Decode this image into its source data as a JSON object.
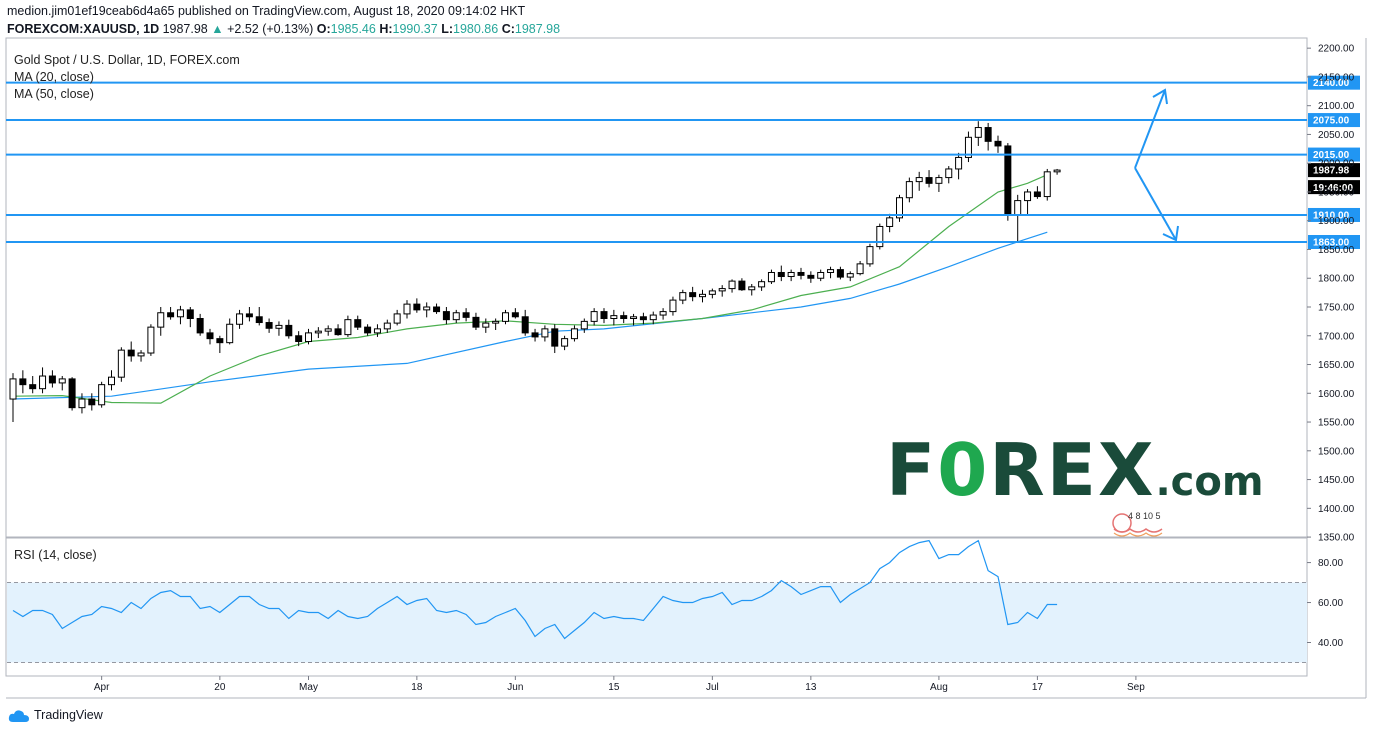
{
  "header": {
    "line1": "medion.jim01ef19ceab6d4a65 published on TradingView.com, August 18, 2020 09:14:02 HKT",
    "symbol": "FOREXCOM:XAUUSD, 1D",
    "last": "1987.98",
    "change_arrow": "▲",
    "change": "+2.52 (+0.13%)",
    "o_label": "O:",
    "o": "1985.46",
    "h_label": "H:",
    "h": "1990.37",
    "l_label": "L:",
    "l": "1980.86",
    "c_label": "C:",
    "c": "1987.98"
  },
  "legend": {
    "title": "Gold Spot / U.S. Dollar, 1D, FOREX.com",
    "ma20": "MA (20, close)",
    "ma50": "MA (50, close)",
    "rsi": "RSI (14, close)"
  },
  "logo": {
    "main": "F0REX",
    "suffix": ".com"
  },
  "stamp_text": "4 8 10 5",
  "footer": {
    "brand": "TradingView"
  },
  "colors": {
    "level_line": "#2196f3",
    "ma20": "#4caf50",
    "ma50": "#2196f3",
    "rsi": "#2196f3",
    "rsi_band": "#e3f2fd",
    "logo": "#1a4b3a",
    "logo_accent": "#1fa84f"
  },
  "chart_data": {
    "type": "candlestick",
    "price_axis": {
      "ticks": [
        1350,
        1400,
        1450,
        1500,
        1550,
        1600,
        1650,
        1700,
        1750,
        1800,
        1850,
        1900,
        1950,
        2000,
        2050,
        2100,
        2150,
        2200
      ],
      "range": [
        1350,
        2200
      ]
    },
    "x_ticks": [
      {
        "i": 9,
        "label": "Apr"
      },
      {
        "i": 21,
        "label": "20"
      },
      {
        "i": 30,
        "label": "May"
      },
      {
        "i": 41,
        "label": "18"
      },
      {
        "i": 51,
        "label": "Jun"
      },
      {
        "i": 61,
        "label": "15"
      },
      {
        "i": 71,
        "label": "Jul"
      },
      {
        "i": 81,
        "label": "13"
      },
      {
        "i": 94,
        "label": "Aug"
      },
      {
        "i": 104,
        "label": "17"
      },
      {
        "i": 114,
        "label": "Sep"
      }
    ],
    "levels": [
      2140,
      2075,
      2015,
      1910,
      1863
    ],
    "level_labels": [
      "2140.00",
      "2075.00",
      "2015.00",
      "1910.00",
      "1863.00"
    ],
    "last_price_label": "1987.98",
    "countdown_label": "19:46:00",
    "candles": [
      [
        1590,
        1635,
        1550,
        1625
      ],
      [
        1625,
        1640,
        1600,
        1615
      ],
      [
        1615,
        1630,
        1600,
        1608
      ],
      [
        1608,
        1645,
        1600,
        1630
      ],
      [
        1630,
        1640,
        1610,
        1618
      ],
      [
        1618,
        1630,
        1605,
        1625
      ],
      [
        1625,
        1628,
        1570,
        1575
      ],
      [
        1575,
        1600,
        1565,
        1590
      ],
      [
        1590,
        1600,
        1570,
        1580
      ],
      [
        1580,
        1620,
        1575,
        1615
      ],
      [
        1615,
        1640,
        1605,
        1628
      ],
      [
        1628,
        1680,
        1620,
        1675
      ],
      [
        1675,
        1690,
        1655,
        1665
      ],
      [
        1665,
        1675,
        1655,
        1670
      ],
      [
        1670,
        1720,
        1665,
        1715
      ],
      [
        1715,
        1750,
        1700,
        1740
      ],
      [
        1740,
        1750,
        1728,
        1733
      ],
      [
        1733,
        1752,
        1720,
        1745
      ],
      [
        1745,
        1750,
        1715,
        1730
      ],
      [
        1730,
        1738,
        1700,
        1705
      ],
      [
        1705,
        1712,
        1685,
        1695
      ],
      [
        1695,
        1700,
        1670,
        1688
      ],
      [
        1688,
        1730,
        1685,
        1720
      ],
      [
        1720,
        1745,
        1712,
        1738
      ],
      [
        1738,
        1750,
        1725,
        1733
      ],
      [
        1733,
        1750,
        1718,
        1723
      ],
      [
        1723,
        1730,
        1705,
        1713
      ],
      [
        1713,
        1725,
        1700,
        1718
      ],
      [
        1718,
        1728,
        1695,
        1700
      ],
      [
        1700,
        1708,
        1682,
        1690
      ],
      [
        1690,
        1712,
        1685,
        1705
      ],
      [
        1705,
        1715,
        1696,
        1708
      ],
      [
        1708,
        1718,
        1700,
        1712
      ],
      [
        1712,
        1720,
        1700,
        1702
      ],
      [
        1702,
        1735,
        1698,
        1728
      ],
      [
        1728,
        1735,
        1710,
        1715
      ],
      [
        1715,
        1720,
        1700,
        1705
      ],
      [
        1705,
        1720,
        1698,
        1712
      ],
      [
        1712,
        1728,
        1705,
        1722
      ],
      [
        1722,
        1745,
        1718,
        1738
      ],
      [
        1738,
        1762,
        1730,
        1755
      ],
      [
        1755,
        1765,
        1740,
        1745
      ],
      [
        1745,
        1758,
        1732,
        1750
      ],
      [
        1750,
        1756,
        1738,
        1742
      ],
      [
        1742,
        1750,
        1720,
        1728
      ],
      [
        1728,
        1745,
        1722,
        1740
      ],
      [
        1740,
        1748,
        1725,
        1732
      ],
      [
        1732,
        1740,
        1710,
        1715
      ],
      [
        1715,
        1730,
        1705,
        1722
      ],
      [
        1722,
        1730,
        1710,
        1725
      ],
      [
        1725,
        1745,
        1720,
        1740
      ],
      [
        1740,
        1748,
        1730,
        1733
      ],
      [
        1733,
        1745,
        1700,
        1705
      ],
      [
        1705,
        1712,
        1690,
        1698
      ],
      [
        1698,
        1718,
        1690,
        1712
      ],
      [
        1712,
        1720,
        1670,
        1682
      ],
      [
        1682,
        1700,
        1675,
        1695
      ],
      [
        1695,
        1718,
        1690,
        1712
      ],
      [
        1712,
        1730,
        1705,
        1725
      ],
      [
        1725,
        1748,
        1718,
        1742
      ],
      [
        1742,
        1748,
        1722,
        1730
      ],
      [
        1730,
        1745,
        1718,
        1735
      ],
      [
        1735,
        1742,
        1722,
        1730
      ],
      [
        1730,
        1738,
        1718,
        1733
      ],
      [
        1733,
        1740,
        1720,
        1728
      ],
      [
        1728,
        1742,
        1720,
        1736
      ],
      [
        1736,
        1748,
        1728,
        1742
      ],
      [
        1742,
        1768,
        1735,
        1762
      ],
      [
        1762,
        1780,
        1755,
        1775
      ],
      [
        1775,
        1785,
        1760,
        1768
      ],
      [
        1768,
        1780,
        1758,
        1772
      ],
      [
        1772,
        1782,
        1765,
        1778
      ],
      [
        1778,
        1788,
        1768,
        1782
      ],
      [
        1782,
        1798,
        1775,
        1795
      ],
      [
        1795,
        1800,
        1778,
        1780
      ],
      [
        1780,
        1790,
        1770,
        1785
      ],
      [
        1785,
        1798,
        1778,
        1794
      ],
      [
        1794,
        1815,
        1790,
        1810
      ],
      [
        1810,
        1822,
        1795,
        1803
      ],
      [
        1803,
        1815,
        1795,
        1810
      ],
      [
        1810,
        1818,
        1798,
        1805
      ],
      [
        1805,
        1812,
        1792,
        1800
      ],
      [
        1800,
        1815,
        1795,
        1810
      ],
      [
        1810,
        1820,
        1800,
        1815
      ],
      [
        1815,
        1820,
        1798,
        1802
      ],
      [
        1802,
        1812,
        1795,
        1808
      ],
      [
        1808,
        1830,
        1805,
        1825
      ],
      [
        1825,
        1860,
        1820,
        1855
      ],
      [
        1855,
        1895,
        1850,
        1890
      ],
      [
        1890,
        1912,
        1880,
        1905
      ],
      [
        1905,
        1945,
        1898,
        1940
      ],
      [
        1940,
        1975,
        1932,
        1968
      ],
      [
        1968,
        1985,
        1952,
        1975
      ],
      [
        1975,
        1988,
        1958,
        1965
      ],
      [
        1965,
        1980,
        1950,
        1975
      ],
      [
        1975,
        1995,
        1965,
        1990
      ],
      [
        1990,
        2018,
        1972,
        2010
      ],
      [
        2010,
        2055,
        2002,
        2045
      ],
      [
        2045,
        2073,
        2030,
        2062
      ],
      [
        2062,
        2070,
        2022,
        2038
      ],
      [
        2038,
        2048,
        2018,
        2030
      ],
      [
        2030,
        2035,
        1900,
        1910
      ],
      [
        1910,
        1945,
        1863,
        1935
      ],
      [
        1935,
        1955,
        1910,
        1950
      ],
      [
        1950,
        1960,
        1938,
        1942
      ],
      [
        1942,
        1990,
        1935,
        1985
      ],
      [
        1985,
        1990,
        1980,
        1988
      ]
    ],
    "ma20": [
      [
        0,
        1595
      ],
      [
        5,
        1596
      ],
      [
        10,
        1584
      ],
      [
        15,
        1583
      ],
      [
        20,
        1630
      ],
      [
        25,
        1665
      ],
      [
        30,
        1690
      ],
      [
        35,
        1697
      ],
      [
        40,
        1712
      ],
      [
        45,
        1722
      ],
      [
        50,
        1726
      ],
      [
        55,
        1720
      ],
      [
        60,
        1718
      ],
      [
        65,
        1722
      ],
      [
        70,
        1730
      ],
      [
        75,
        1745
      ],
      [
        80,
        1770
      ],
      [
        85,
        1785
      ],
      [
        90,
        1820
      ],
      [
        95,
        1890
      ],
      [
        100,
        1950
      ],
      [
        103,
        1965
      ],
      [
        105,
        1980
      ]
    ],
    "ma50": [
      [
        0,
        1590
      ],
      [
        10,
        1595
      ],
      [
        20,
        1620
      ],
      [
        30,
        1642
      ],
      [
        40,
        1652
      ],
      [
        50,
        1690
      ],
      [
        55,
        1708
      ],
      [
        60,
        1712
      ],
      [
        70,
        1730
      ],
      [
        80,
        1750
      ],
      [
        85,
        1765
      ],
      [
        90,
        1790
      ],
      [
        95,
        1820
      ],
      [
        100,
        1852
      ],
      [
        105,
        1880
      ]
    ],
    "rsi": {
      "ticks": [
        40,
        60,
        80
      ],
      "band": [
        30,
        70
      ],
      "values": [
        56,
        53,
        56,
        56,
        54,
        47,
        50,
        53,
        54,
        58,
        57,
        55,
        60,
        57,
        62,
        65,
        66,
        63,
        63,
        57,
        58,
        55,
        59,
        63,
        63,
        59,
        57,
        57,
        52,
        56,
        55,
        55,
        52,
        56,
        53,
        52,
        53,
        57,
        60,
        63,
        59,
        61,
        62,
        56,
        55,
        56,
        54,
        49,
        50,
        53,
        55,
        57,
        51,
        43,
        47,
        49,
        42,
        46,
        50,
        55,
        52,
        53,
        52,
        52,
        51,
        57,
        63,
        61,
        60,
        60,
        62,
        63,
        65,
        59,
        61,
        61,
        63,
        66,
        71,
        68,
        64,
        66,
        68,
        68,
        60,
        64,
        67,
        70,
        77,
        80,
        85,
        88,
        90,
        91,
        82,
        84,
        84,
        88,
        91,
        76,
        73,
        49,
        50,
        55,
        52,
        59,
        59
      ]
    }
  }
}
